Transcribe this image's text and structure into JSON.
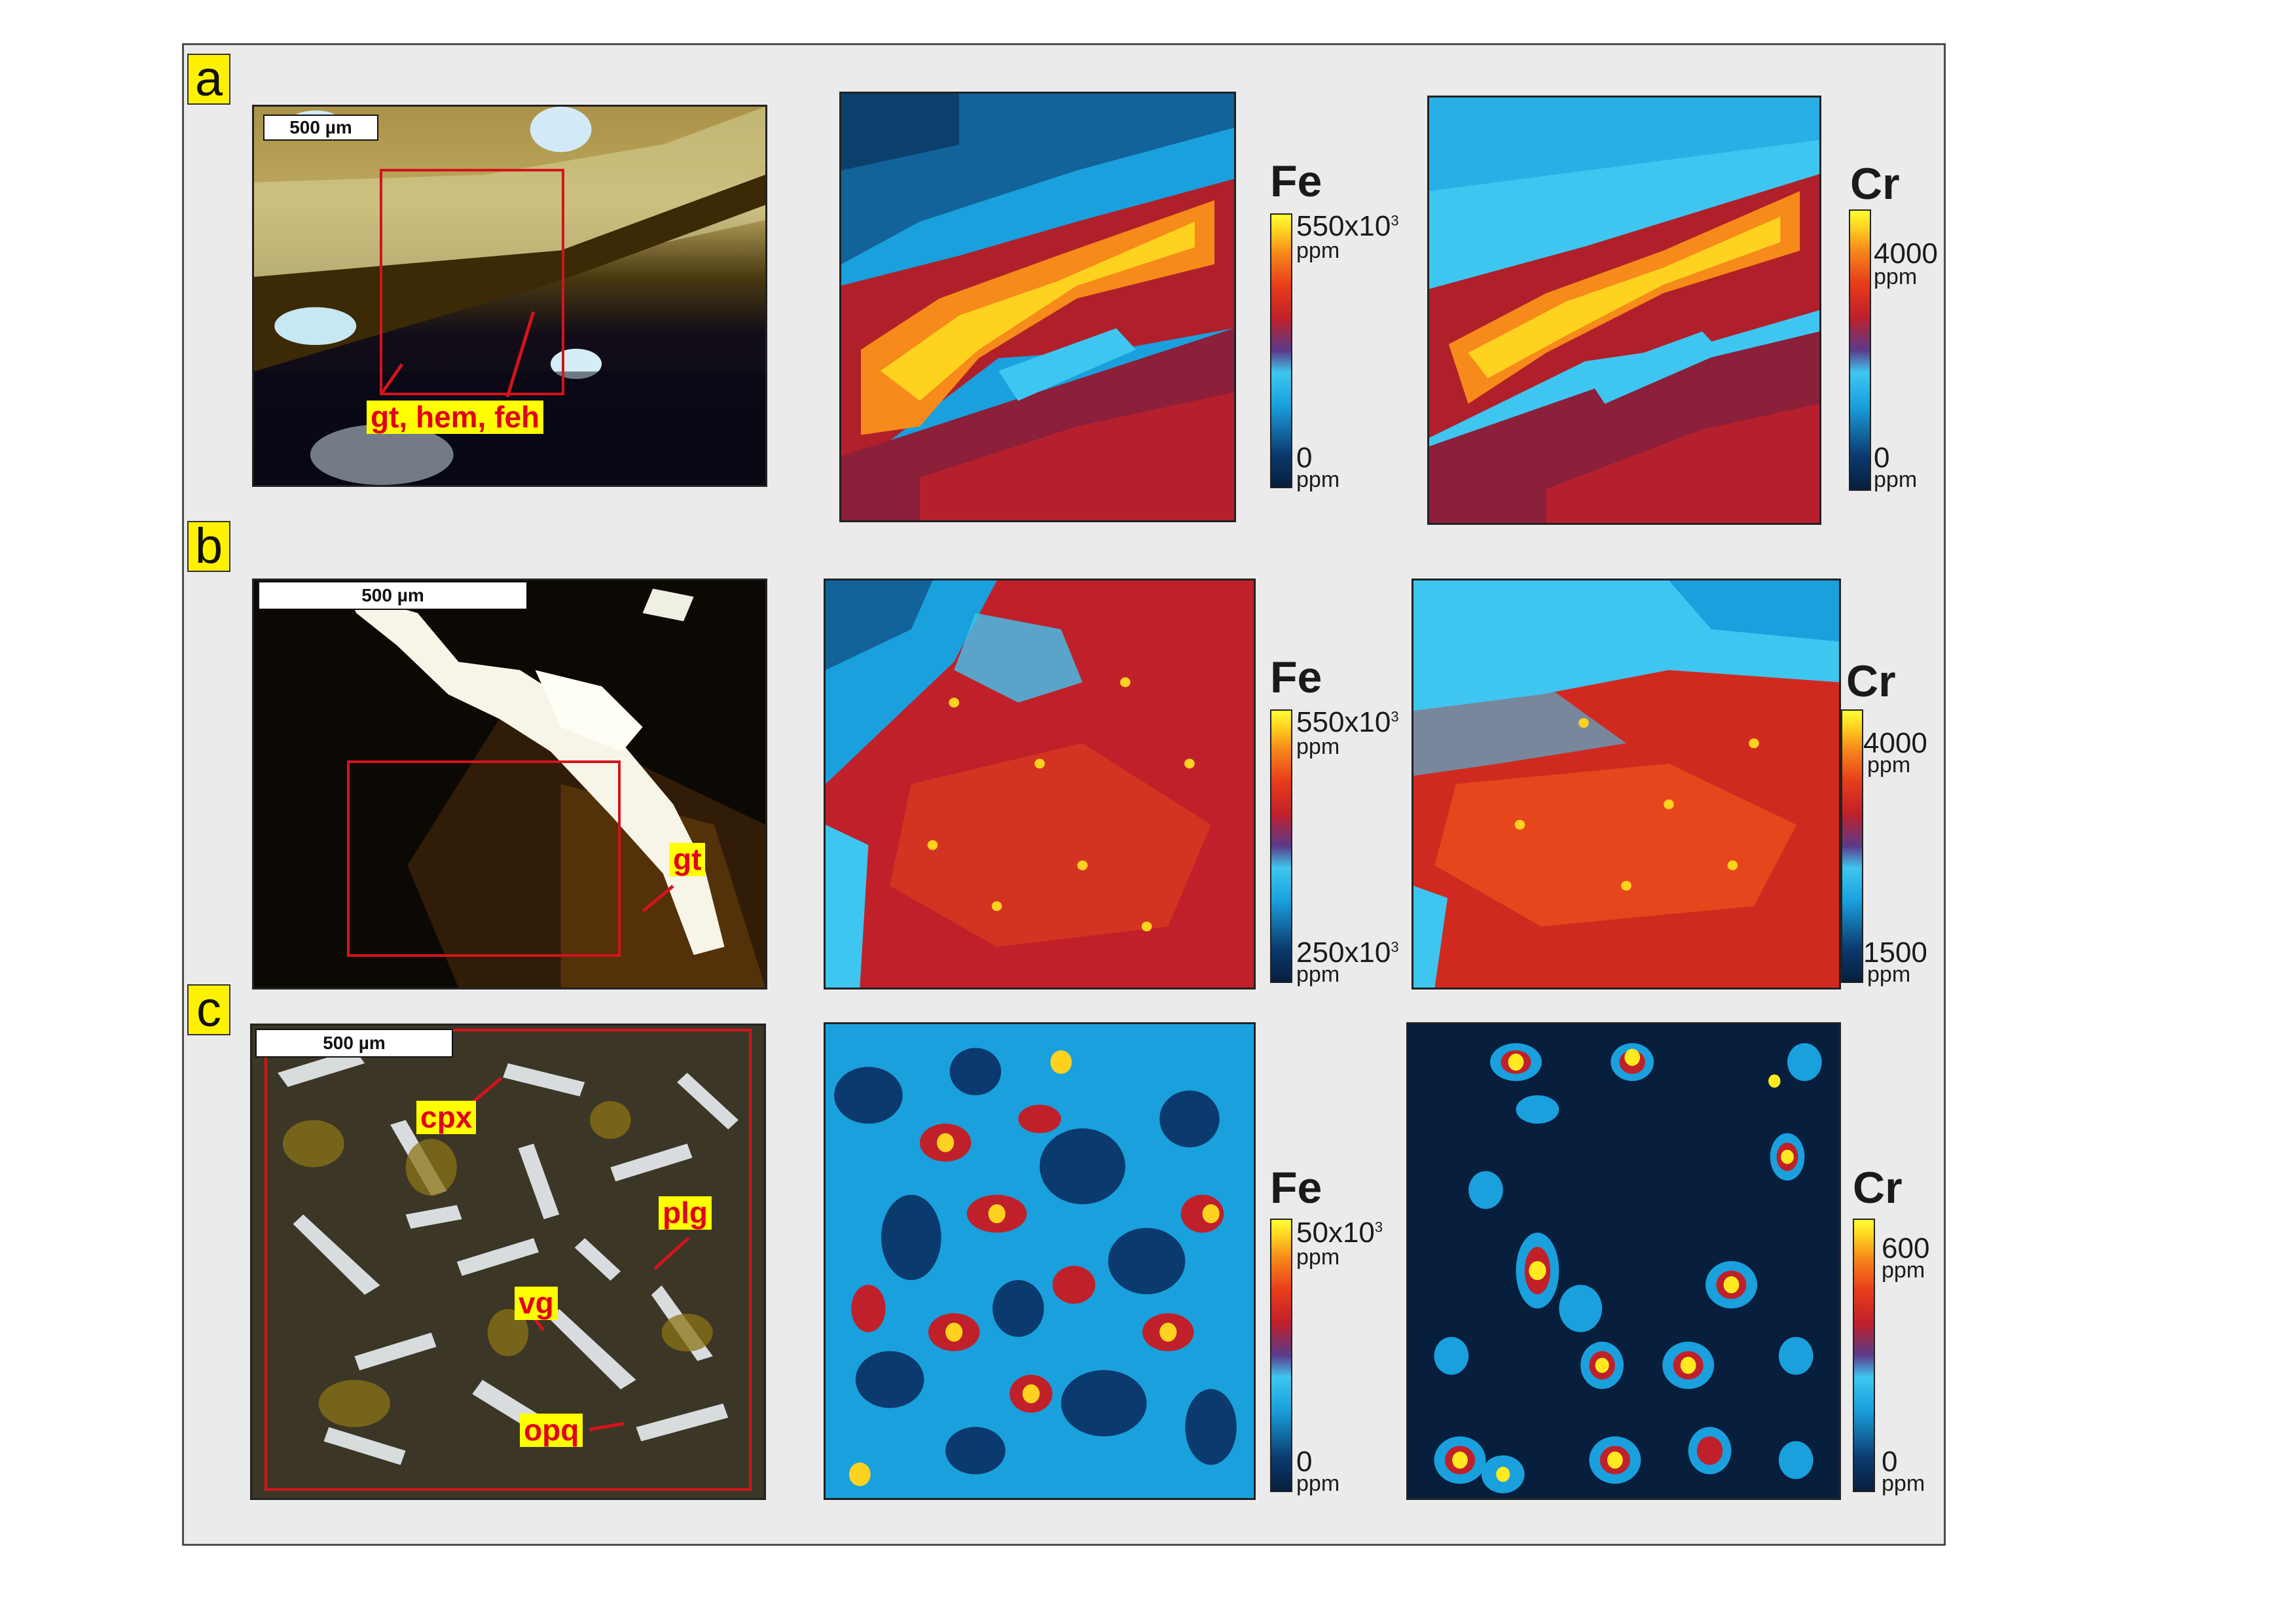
{
  "panels": [
    {
      "letter": "a",
      "scale_bar": "500 µm",
      "labels": [
        "gt, hem, feh"
      ],
      "maps": [
        {
          "element": "Fe",
          "max": "550x10",
          "max_sup": "3",
          "min": "0",
          "unit": "ppm"
        },
        {
          "element": "Cr",
          "max": "4000",
          "max_sup": "",
          "min": "0",
          "unit": "ppm"
        }
      ]
    },
    {
      "letter": "b",
      "scale_bar": "500 µm",
      "labels": [
        "gt"
      ],
      "maps": [
        {
          "element": "Fe",
          "max": "550x10",
          "max_sup": "3",
          "min": "250x10",
          "min_sup": "3",
          "unit": "ppm"
        },
        {
          "element": "Cr",
          "max": "4000",
          "max_sup": "",
          "min": "1500",
          "unit": "ppm"
        }
      ]
    },
    {
      "letter": "c",
      "scale_bar": "500 µm",
      "labels": [
        "cpx",
        "plg",
        "vg",
        "opq"
      ],
      "maps": [
        {
          "element": "Fe",
          "max": "50x10",
          "max_sup": "3",
          "min": "0",
          "unit": "ppm"
        },
        {
          "element": "Cr",
          "max": "600",
          "max_sup": "",
          "min": "0",
          "unit": "ppm"
        }
      ]
    }
  ],
  "colors": {
    "label_bg": "#ffff00",
    "label_text": "#e0001b",
    "roi_outline": "#d3141c",
    "colormap": [
      "#071e3d",
      "#1aa0dd",
      "#c0202a",
      "#f68a1a",
      "#ffff33"
    ]
  }
}
